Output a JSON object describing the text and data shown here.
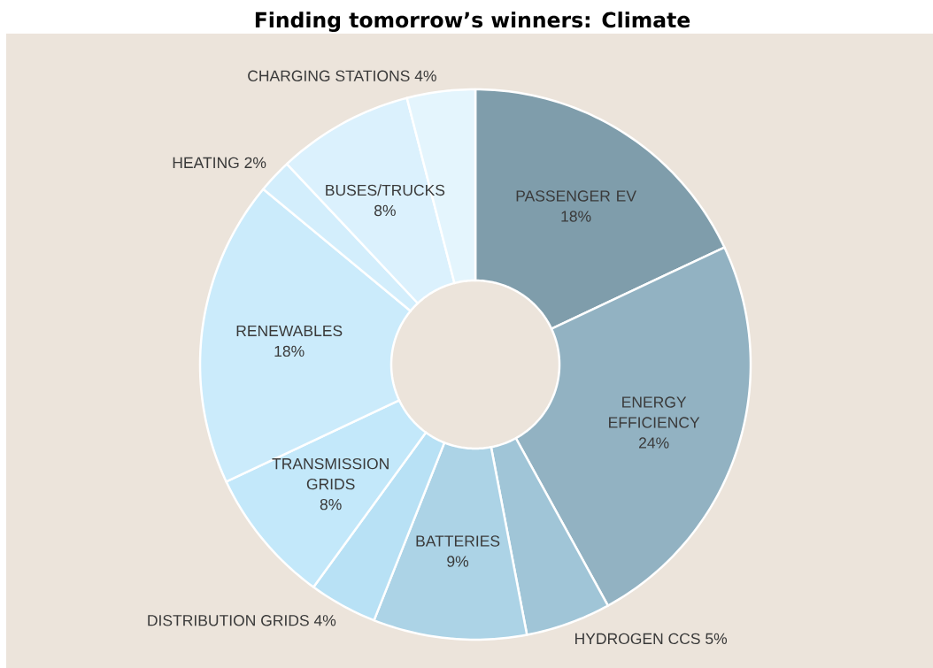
{
  "chart_data": {
    "type": "donut",
    "title": "Finding tomorrow’s winners: Climate",
    "categories": [
      "PASSENGER EV",
      "ENERGY EFFICIENCY",
      "HYDROGEN CCS",
      "BATTERIES",
      "DISTRIBUTION GRIDS",
      "TRANSMISSION GRIDS",
      "RENEWABLES",
      "HEATING",
      "BUSES/TRUCKS",
      "CHARGING STATIONS"
    ],
    "values": [
      18,
      24,
      5,
      9,
      4,
      8,
      18,
      2,
      8,
      4
    ],
    "value_labels": [
      "18%",
      "24%",
      "5%",
      "9%",
      "4%",
      "8%",
      "18%",
      "2%",
      "8%",
      "4%"
    ],
    "colors": [
      "#7f9dab",
      "#92b2c2",
      "#a0c5d7",
      "#acd3e6",
      "#b8e1f5",
      "#c3e8fa",
      "#cbebfb",
      "#d3eefc",
      "#dbf1fd",
      "#e4f5fd"
    ]
  }
}
